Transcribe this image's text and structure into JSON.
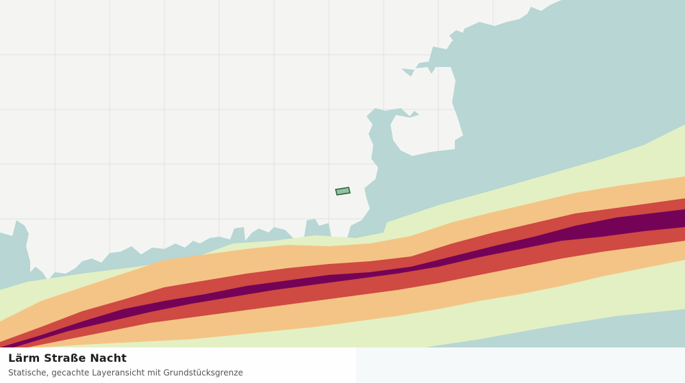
{
  "layer": {
    "title": "Lärm Straße Nacht",
    "subtitle": "Statische, gecachte Layeransicht mit Grundstücksgrenze"
  },
  "colors": {
    "background": "#f4f5f3",
    "grid": "#e0e2e0",
    "water": "#b7d6d4",
    "noise_lowest": "#e3f0c3",
    "noise_low": "#f4c486",
    "noise_mid": "#ce4a42",
    "noise_high": "#740257",
    "parcel_fill": "#8fc4a0",
    "parcel_outline": "#2c5a3a"
  }
}
